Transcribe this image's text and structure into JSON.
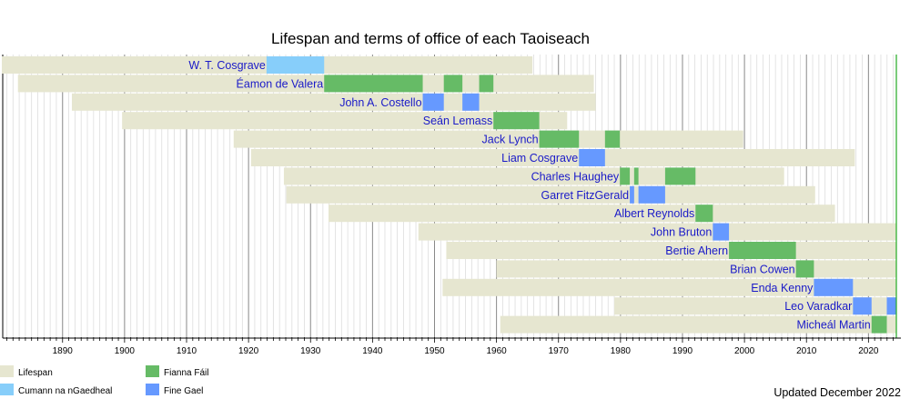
{
  "chart_data": {
    "type": "timeline",
    "title": "Lifespan and terms of office of each Taoiseach",
    "note": "Updated December 2022",
    "xlim": [
      1880.2,
      2024.5
    ],
    "x_ticks": [
      1890,
      1900,
      1910,
      1920,
      1930,
      1940,
      1950,
      1960,
      1970,
      1980,
      1990,
      2000,
      2010,
      2020
    ],
    "grid": "vertical, yearly minor lines and decade major lines",
    "current_marker": 2024.5,
    "colors": {
      "Lifespan": "#e6e6d0",
      "Cumann na nGaedheal": "#87cefa",
      "Fianna Fáil": "#66bb66",
      "Fine Gael": "#6699ff"
    },
    "legend": [
      "Lifespan",
      "Cumann na nGaedheal",
      "Fianna Fáil",
      "Fine Gael"
    ],
    "legend_placement": "bottom-left",
    "rows": [
      {
        "name": "W. T. Cosgrave",
        "life": [
          1880.2,
          1965.8
        ],
        "terms": [
          {
            "party": "Cumann na nGaedheal",
            "from": 1922.9,
            "to": 1932.2
          }
        ]
      },
      {
        "name": "Éamon de Valera",
        "life": [
          1882.8,
          1975.7
        ],
        "terms": [
          {
            "party": "Fianna Fáil",
            "from": 1932.2,
            "to": 1948.1
          },
          {
            "party": "Fianna Fáil",
            "from": 1951.5,
            "to": 1954.5
          },
          {
            "party": "Fianna Fáil",
            "from": 1957.2,
            "to": 1959.5
          }
        ]
      },
      {
        "name": "John A. Costello",
        "life": [
          1891.5,
          1976.0
        ],
        "terms": [
          {
            "party": "Fine Gael",
            "from": 1948.1,
            "to": 1951.5
          },
          {
            "party": "Fine Gael",
            "from": 1954.5,
            "to": 1957.2
          }
        ]
      },
      {
        "name": "Seán Lemass",
        "life": [
          1899.6,
          1971.4
        ],
        "terms": [
          {
            "party": "Fianna Fáil",
            "from": 1959.5,
            "to": 1966.9
          }
        ]
      },
      {
        "name": "Jack Lynch",
        "life": [
          1917.6,
          1999.8
        ],
        "terms": [
          {
            "party": "Fianna Fáil",
            "from": 1966.9,
            "to": 1973.3
          },
          {
            "party": "Fianna Fáil",
            "from": 1977.5,
            "to": 1979.9
          }
        ]
      },
      {
        "name": "Liam Cosgrave",
        "life": [
          1920.4,
          2017.8
        ],
        "terms": [
          {
            "party": "Fine Gael",
            "from": 1973.3,
            "to": 1977.5
          }
        ]
      },
      {
        "name": "Charles Haughey",
        "life": [
          1925.7,
          2006.4
        ],
        "terms": [
          {
            "party": "Fianna Fáil",
            "from": 1979.9,
            "to": 1981.5
          },
          {
            "party": "Fianna Fáil",
            "from": 1982.2,
            "to": 1982.9
          },
          {
            "party": "Fianna Fáil",
            "from": 1987.2,
            "to": 1992.1
          }
        ]
      },
      {
        "name": "Garret FitzGerald",
        "life": [
          1926.1,
          2011.4
        ],
        "terms": [
          {
            "party": "Fine Gael",
            "from": 1981.5,
            "to": 1982.2
          },
          {
            "party": "Fine Gael",
            "from": 1982.9,
            "to": 1987.2
          }
        ]
      },
      {
        "name": "Albert Reynolds",
        "life": [
          1932.9,
          2014.6
        ],
        "terms": [
          {
            "party": "Fianna Fáil",
            "from": 1992.1,
            "to": 1994.9
          }
        ]
      },
      {
        "name": "John Bruton",
        "life": [
          1947.4,
          2024.5
        ],
        "terms": [
          {
            "party": "Fine Gael",
            "from": 1994.9,
            "to": 1997.5
          }
        ]
      },
      {
        "name": "Bertie Ahern",
        "life": [
          1951.9,
          2024.5
        ],
        "terms": [
          {
            "party": "Fianna Fáil",
            "from": 1997.5,
            "to": 2008.3
          }
        ]
      },
      {
        "name": "Brian Cowen",
        "life": [
          1960.0,
          2024.5
        ],
        "terms": [
          {
            "party": "Fianna Fáil",
            "from": 2008.3,
            "to": 2011.2
          }
        ]
      },
      {
        "name": "Enda Kenny",
        "life": [
          1951.3,
          2024.5
        ],
        "terms": [
          {
            "party": "Fine Gael",
            "from": 2011.2,
            "to": 2017.5
          }
        ]
      },
      {
        "name": "Leo Varadkar",
        "life": [
          1979.0,
          2024.5
        ],
        "terms": [
          {
            "party": "Fine Gael",
            "from": 2017.5,
            "to": 2020.5
          },
          {
            "party": "Fine Gael",
            "from": 2022.96,
            "to": 2024.5
          }
        ]
      },
      {
        "name": "Micheál Martin",
        "life": [
          1960.6,
          2024.5
        ],
        "terms": [
          {
            "party": "Fianna Fáil",
            "from": 2020.5,
            "to": 2022.96
          }
        ]
      }
    ]
  }
}
